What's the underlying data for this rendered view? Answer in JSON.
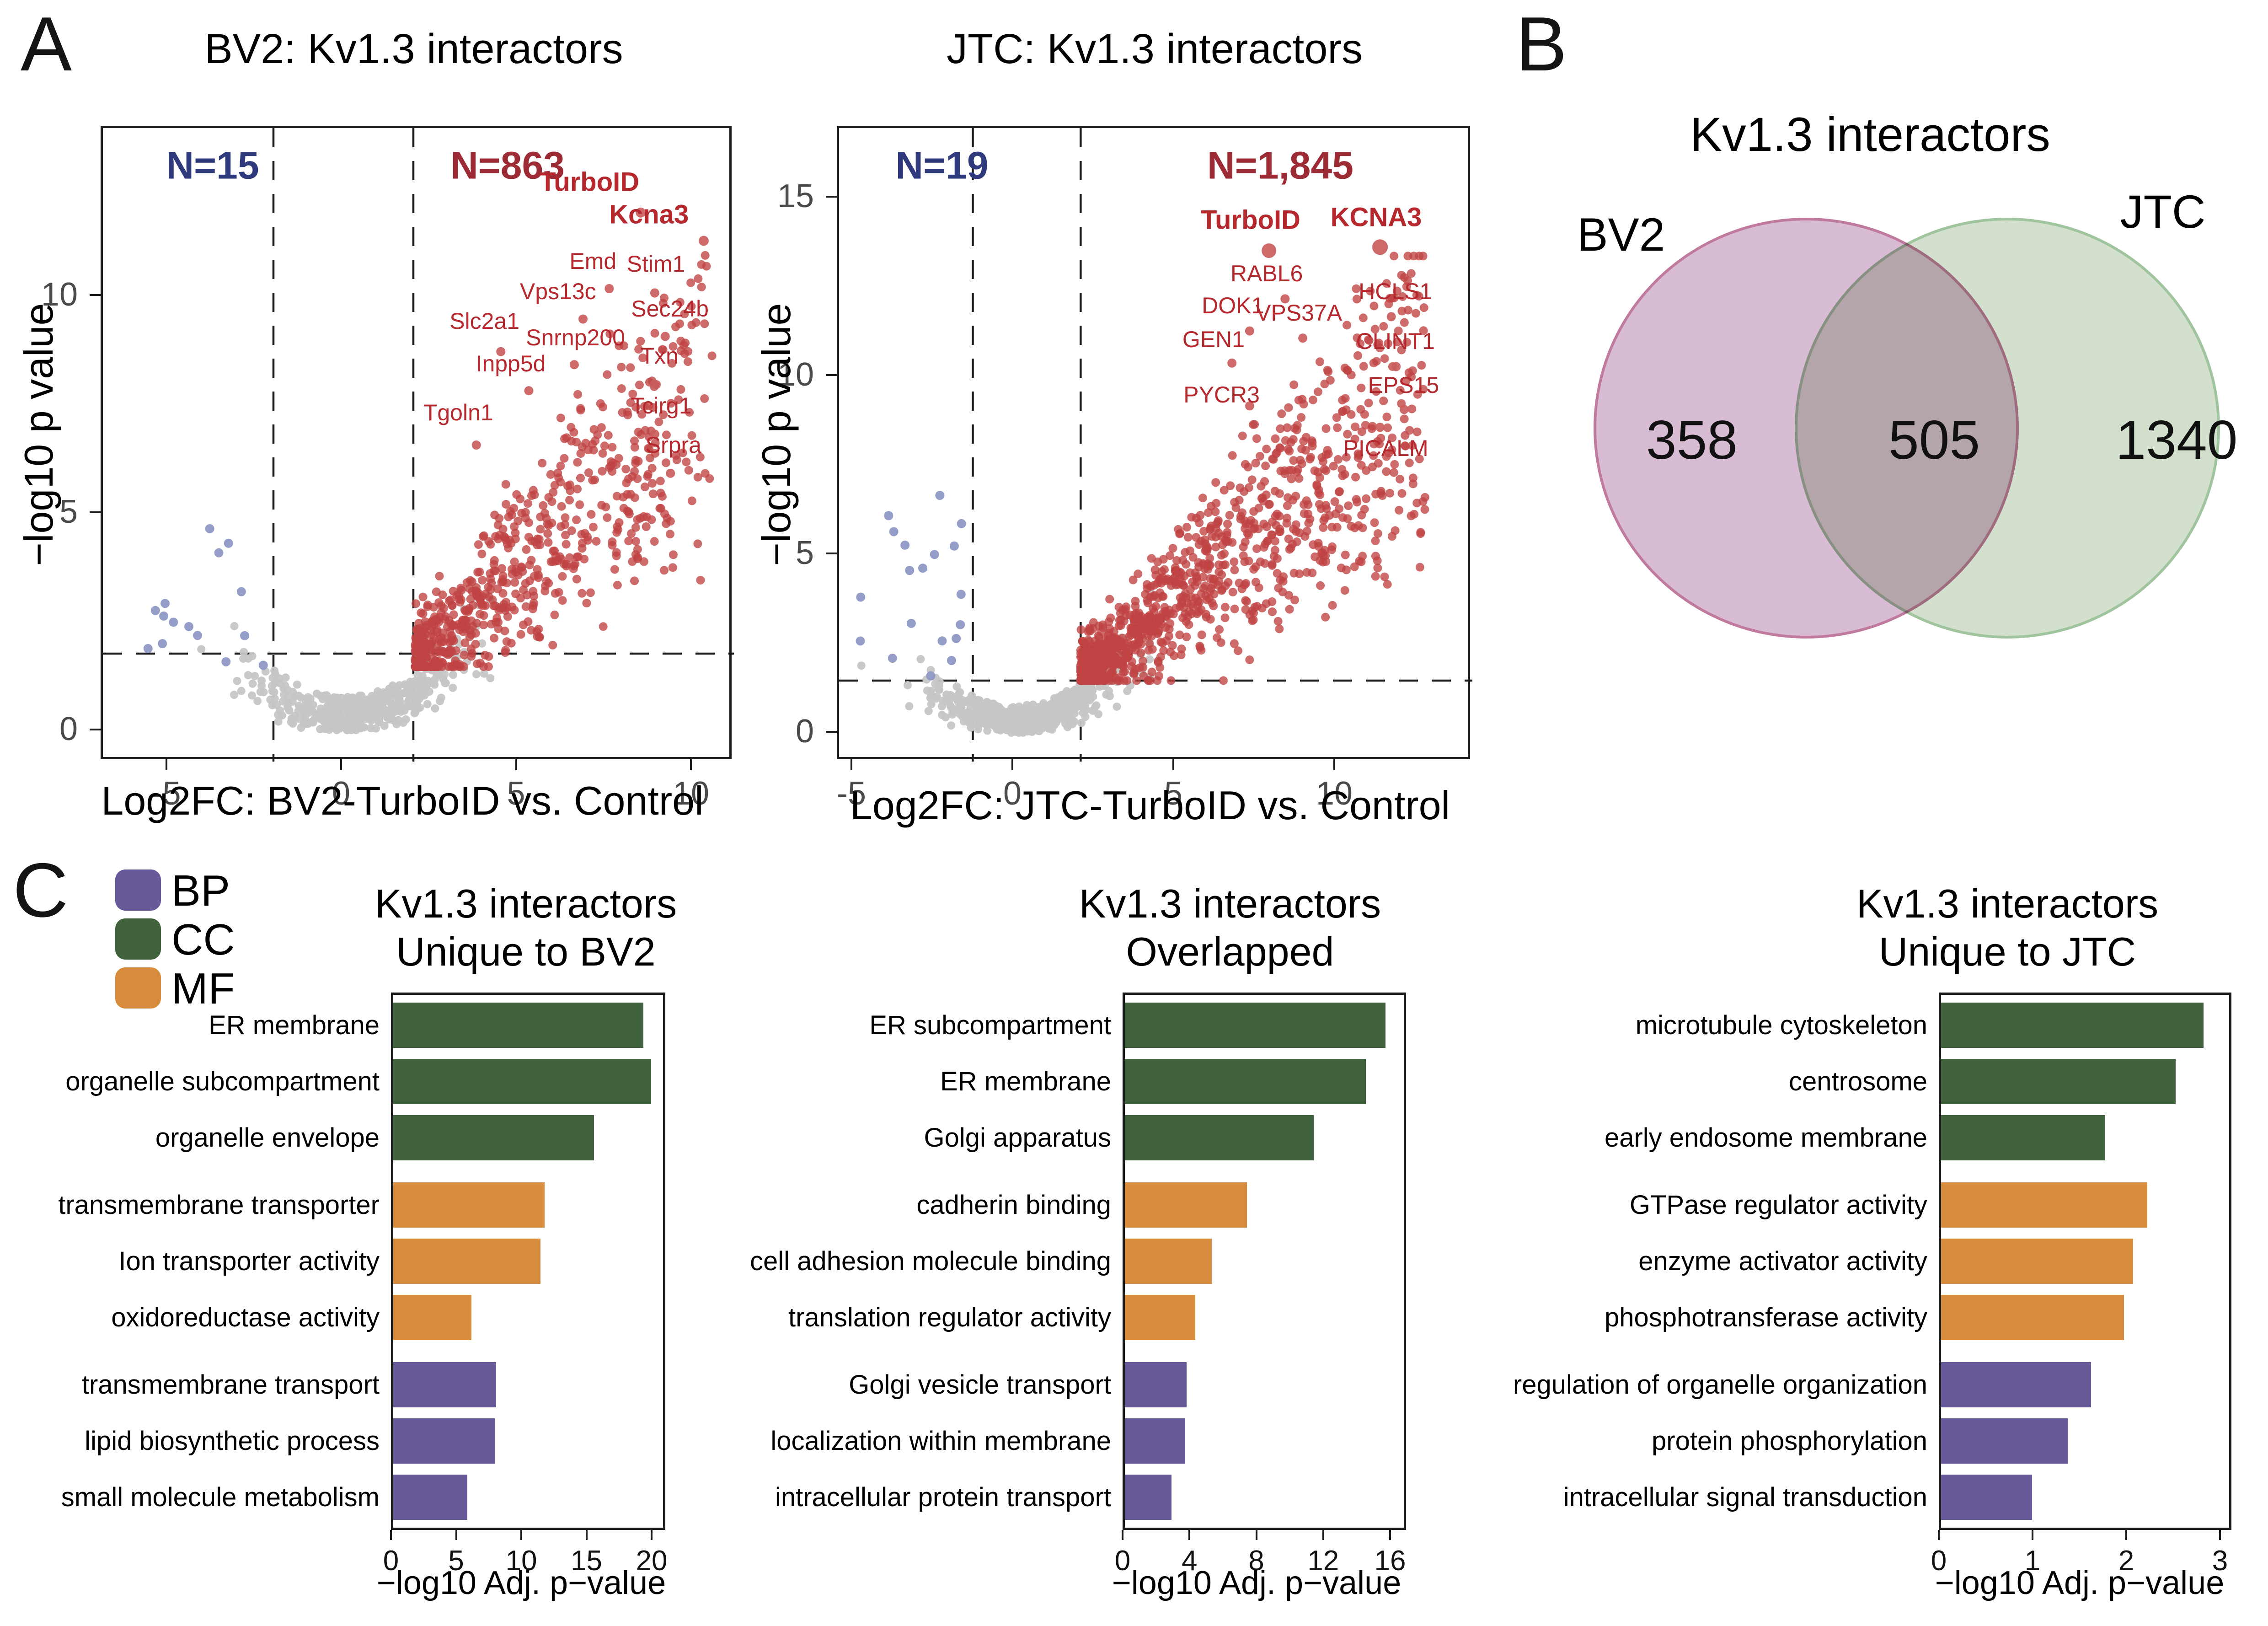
{
  "figure": {
    "panel_a_label": "A",
    "panel_b_label": "B",
    "panel_c_label": "C"
  },
  "colors": {
    "bp": "#685a99",
    "cc": "#40633e",
    "mf": "#d78c3d",
    "up_points": "#c04343",
    "down_points": "#8e99c5",
    "ns_points": "#c6c6c6",
    "gene_dot": "#cb5d5d",
    "gene_label": "#b4282e",
    "n_up": "#9c2b35",
    "n_down": "#2f3a7c",
    "venn_bv2_fill": "#d8bcd4",
    "venn_bv2_stroke": "#c07a9e",
    "venn_jtc_fill": "#d3e0cd",
    "venn_jtc_stroke": "#a0c49d"
  },
  "legend": {
    "items": [
      {
        "label": "BP",
        "color_key": "bp"
      },
      {
        "label": "CC",
        "color_key": "cc"
      },
      {
        "label": "MF",
        "color_key": "mf"
      }
    ]
  },
  "venn": {
    "title": "Kv1.3 interactors",
    "left_label": "BV2",
    "right_label": "JTC",
    "left_only": "358",
    "overlap": "505",
    "right_only": "1340"
  },
  "chart_data": [
    {
      "id": "volcano_bv2",
      "type": "scatter",
      "subtype": "volcano",
      "title": "BV2: Kv1.3 interactors",
      "xlabel": "Log2FC: BV2-TurboID vs. Control",
      "ylabel": "−log10 p value",
      "xlim": [
        -6.9,
        11.2
      ],
      "ylim": [
        -0.7,
        14.0
      ],
      "xticks": [
        -5,
        0,
        5,
        10
      ],
      "yticks": [
        0,
        5,
        10
      ],
      "grid": false,
      "n_down_label": "N=15",
      "n_up_label": "N=863",
      "threshold_lines": {
        "h_y": 1.8,
        "v_x": [
          -2,
          2
        ]
      },
      "genes": [
        {
          "name": "TurboID",
          "x": 8.5,
          "y": 11.95,
          "lx": 7.1,
          "ly": 12.6,
          "bold": true,
          "r": 11
        },
        {
          "name": "Kcna3",
          "x": 10.3,
          "y": 11.3,
          "lx": 8.8,
          "ly": 11.85,
          "bold": true,
          "r": 11
        },
        {
          "name": "Emd",
          "x": 7.6,
          "y": 10.2,
          "lx": 7.2,
          "ly": 10.78,
          "bold": false,
          "r": 10
        },
        {
          "name": "Stim1",
          "x": 8.9,
          "y": 10.1,
          "lx": 9.0,
          "ly": 10.72,
          "bold": false,
          "r": 10
        },
        {
          "name": "Vps13c",
          "x": 6.85,
          "y": 9.5,
          "lx": 6.2,
          "ly": 10.08,
          "bold": false,
          "r": 10
        },
        {
          "name": "Slc2a1",
          "x": 4.5,
          "y": 8.75,
          "lx": 4.1,
          "ly": 9.4,
          "bold": false,
          "r": 10
        },
        {
          "name": "Snrnp200",
          "x": 6.6,
          "y": 8.45,
          "lx": 6.7,
          "ly": 9.02,
          "bold": false,
          "r": 10
        },
        {
          "name": "Sec24b",
          "x": 9.2,
          "y": 9.1,
          "lx": 9.4,
          "ly": 9.68,
          "bold": false,
          "r": 10
        },
        {
          "name": "Inpp5d",
          "x": 5.3,
          "y": 7.85,
          "lx": 4.85,
          "ly": 8.42,
          "bold": false,
          "r": 10
        },
        {
          "name": "Txn",
          "x": 8.9,
          "y": 8.0,
          "lx": 9.1,
          "ly": 8.6,
          "bold": false,
          "r": 10
        },
        {
          "name": "Tgoln1",
          "x": 3.8,
          "y": 6.6,
          "lx": 3.35,
          "ly": 7.3,
          "bold": false,
          "r": 10
        },
        {
          "name": "Tcirg1",
          "x": 8.9,
          "y": 6.85,
          "lx": 9.15,
          "ly": 7.45,
          "bold": false,
          "r": 10
        },
        {
          "name": "Srpra",
          "x": 9.35,
          "y": 5.95,
          "lx": 9.5,
          "ly": 6.55,
          "bold": false,
          "r": 10
        }
      ],
      "cloud": {
        "seed": 12,
        "n_up": 700,
        "n_ns": 430,
        "n_down": 15,
        "up_x_max": 10.6,
        "ns_x_min": -6.4,
        "down_x": [
          -5.6,
          -2.2
        ],
        "down_y": [
          1.5,
          5.0
        ],
        "up_y_max": 12.3
      }
    },
    {
      "id": "volcano_jtc",
      "type": "scatter",
      "subtype": "volcano",
      "title": "JTC: Kv1.3 interactors",
      "xlabel": "Log2FC: JTC-TurboID vs. Control",
      "ylabel": "−log10 p value",
      "xlim": [
        -5.5,
        13.7
      ],
      "ylim": [
        -0.8,
        17.0
      ],
      "xticks": [
        -5,
        0,
        5,
        10
      ],
      "yticks": [
        0,
        5,
        10,
        15
      ],
      "grid": false,
      "n_down_label": "N=19",
      "n_up_label": "N=1,845",
      "threshold_lines": {
        "h_y": 1.5,
        "v_x": [
          -1.3,
          2.05
        ]
      },
      "genes": [
        {
          "name": "TurboID",
          "x": 7.9,
          "y": 13.55,
          "lx": 7.4,
          "ly": 14.35,
          "bold": true,
          "r": 16
        },
        {
          "name": "KCNA3",
          "x": 11.35,
          "y": 13.65,
          "lx": 11.3,
          "ly": 14.42,
          "bold": true,
          "r": 17
        },
        {
          "name": "RABL6",
          "x": 8.4,
          "y": 12.2,
          "lx": 7.9,
          "ly": 12.85,
          "bold": false,
          "r": 10
        },
        {
          "name": "HCLS1",
          "x": 11.7,
          "y": 11.7,
          "lx": 11.9,
          "ly": 12.35,
          "bold": false,
          "r": 10
        },
        {
          "name": "DOK1",
          "x": 7.3,
          "y": 11.3,
          "lx": 6.85,
          "ly": 11.95,
          "bold": false,
          "r": 10
        },
        {
          "name": "VPS37A",
          "x": 8.95,
          "y": 11.1,
          "lx": 8.9,
          "ly": 11.75,
          "bold": false,
          "r": 10
        },
        {
          "name": "GEN1",
          "x": 6.75,
          "y": 10.4,
          "lx": 6.25,
          "ly": 11.0,
          "bold": false,
          "r": 10
        },
        {
          "name": "CLINT1",
          "x": 11.85,
          "y": 10.3,
          "lx": 11.9,
          "ly": 10.95,
          "bold": false,
          "r": 10
        },
        {
          "name": "PYCR3",
          "x": 7.3,
          "y": 9.2,
          "lx": 6.5,
          "ly": 9.45,
          "bold": false,
          "r": 10
        },
        {
          "name": "EPS15",
          "x": 12.1,
          "y": 9.1,
          "lx": 12.15,
          "ly": 9.72,
          "bold": false,
          "r": 10
        },
        {
          "name": "PICALM",
          "x": 11.35,
          "y": 8.6,
          "lx": 11.6,
          "ly": 7.95,
          "bold": false,
          "r": 10
        }
      ],
      "cloud": {
        "seed": 7,
        "n_up": 1100,
        "n_ns": 500,
        "n_down": 19,
        "up_x_max": 12.8,
        "ns_x_min": -5.3,
        "down_x": [
          -4.8,
          -1.6
        ],
        "down_y": [
          1.55,
          7.1
        ],
        "up_y_max": 13.4
      }
    },
    {
      "id": "venn_kv13",
      "type": "venn",
      "title": "Kv1.3 interactors",
      "sets": [
        {
          "label": "BV2",
          "unique": 358
        },
        {
          "label": "JTC",
          "unique": 1340
        }
      ],
      "overlap": 505
    },
    {
      "id": "go_unique_bv2",
      "type": "bar",
      "orientation": "horizontal",
      "title_line1": "Kv1.3 interactors",
      "title_line2": "Unique to BV2",
      "xlabel": "−log10 Adj. p−value",
      "xticks": [
        0,
        5,
        10,
        15,
        20
      ],
      "xlim": [
        0,
        21
      ],
      "categories": [
        "ER membrane",
        "organelle subcompartment",
        "organelle envelope",
        "transmembrane transporter",
        "Ion transporter activity",
        "oxidoreductase activity",
        "transmembrane transport",
        "lipid biosynthetic process",
        "small molecule metabolism"
      ],
      "values": [
        19.2,
        19.8,
        15.4,
        11.6,
        11.3,
        6.0,
        7.9,
        7.8,
        5.7
      ],
      "groups": [
        "CC",
        "CC",
        "CC",
        "MF",
        "MF",
        "MF",
        "BP",
        "BP",
        "BP"
      ]
    },
    {
      "id": "go_overlapped",
      "type": "bar",
      "orientation": "horizontal",
      "title_line1": "Kv1.3 interactors",
      "title_line2": "Overlapped",
      "xlabel": "−log10 Adj. p−value",
      "xticks": [
        0,
        4,
        8,
        12,
        16
      ],
      "xlim": [
        0,
        17
      ],
      "categories": [
        "ER subcompartment",
        "ER membrane",
        "Golgi apparatus",
        "cadherin binding",
        "cell adhesion molecule binding",
        "translation regulator activity",
        "Golgi vesicle transport",
        "localization within membrane",
        "intracellular protein transport"
      ],
      "values": [
        15.6,
        14.4,
        11.3,
        7.3,
        5.2,
        4.2,
        3.7,
        3.6,
        2.8
      ],
      "groups": [
        "CC",
        "CC",
        "CC",
        "MF",
        "MF",
        "MF",
        "BP",
        "BP",
        "BP"
      ]
    },
    {
      "id": "go_unique_jtc",
      "type": "bar",
      "orientation": "horizontal",
      "title_line1": "Kv1.3 interactors",
      "title_line2": "Unique to JTC",
      "xlabel": "−log10 Adj. p−value",
      "xticks": [
        0,
        1,
        2,
        3
      ],
      "xlim": [
        0,
        3.1
      ],
      "categories": [
        "microtubule cytoskeleton",
        "centrosome",
        "early endosome membrane",
        "GTPase regulator activity",
        "enzyme activator activity",
        "phosphotransferase activity",
        "regulation of organelle organization",
        "protein phosphorylation",
        "intracellular signal transduction"
      ],
      "values": [
        2.8,
        2.5,
        1.75,
        2.2,
        2.05,
        1.95,
        1.6,
        1.35,
        0.97
      ],
      "groups": [
        "CC",
        "CC",
        "CC",
        "MF",
        "MF",
        "MF",
        "BP",
        "BP",
        "BP"
      ]
    }
  ]
}
